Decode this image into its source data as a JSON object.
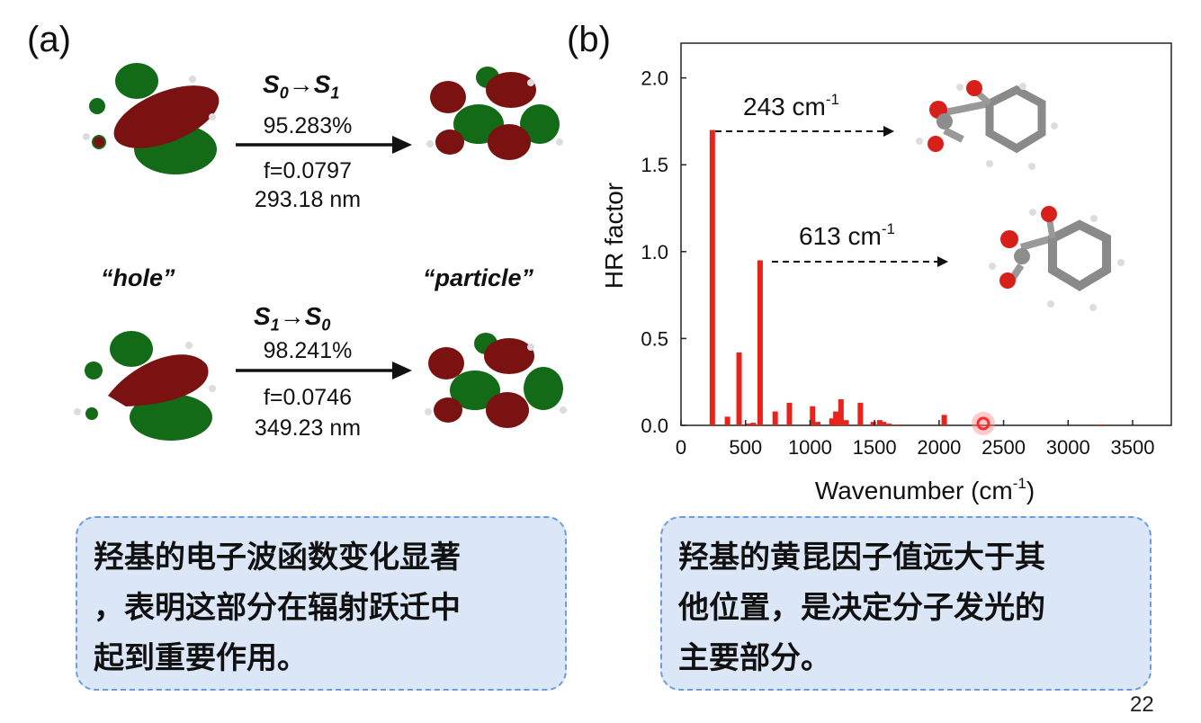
{
  "panel_a": {
    "label": "(a)",
    "transition1": {
      "from": "S",
      "from_sub": "0",
      "to": "S",
      "to_sub": "1",
      "percent": "95.283%",
      "f": "f=0.0797",
      "wavelength": "293.18 nm"
    },
    "transition2": {
      "from": "S",
      "from_sub": "1",
      "to": "S",
      "to_sub": "0",
      "percent": "98.241%",
      "f": "f=0.0746",
      "wavelength": "349.23 nm"
    },
    "hole_label": "“hole”",
    "particle_label": "“particle”"
  },
  "panel_b": {
    "label": "(b)",
    "annotation1": {
      "text": "243 cm",
      "sup": "-1"
    },
    "annotation2": {
      "text": "613 cm",
      "sup": "-1"
    }
  },
  "chart_data": {
    "type": "bar",
    "xlabel": "Wavenumber (cm",
    "xlabel_sup": "-1",
    "xlabel_close": ")",
    "ylabel": "HR factor",
    "xlim": [
      0,
      3800
    ],
    "ylim": [
      0,
      2.2
    ],
    "xticks": [
      0,
      500,
      1000,
      1500,
      2000,
      2500,
      3000,
      3500
    ],
    "xtick_labels": [
      "0",
      "500",
      "1000",
      "1500",
      "2000",
      "2500",
      "3000",
      "3500"
    ],
    "yticks": [
      0,
      0.5,
      1.0,
      1.5,
      2.0
    ],
    "ytick_labels": [
      "0.0",
      "0.5",
      "1.0",
      "1.5",
      "2.0"
    ],
    "bar_color": "#e8231c",
    "x": [
      243,
      360,
      450,
      520,
      560,
      613,
      730,
      840,
      1020,
      1060,
      1170,
      1200,
      1240,
      1280,
      1390,
      1490,
      1540,
      1570,
      1610,
      1680,
      2040,
      2300,
      3250
    ],
    "values": [
      1.7,
      0.05,
      0.42,
      0.01,
      0.015,
      0.95,
      0.08,
      0.13,
      0.11,
      0.02,
      0.04,
      0.08,
      0.15,
      0.03,
      0.13,
      0.02,
      0.03,
      0.02,
      0.01,
      0.005,
      0.06,
      0.0,
      0.005
    ]
  },
  "notes": {
    "left": [
      "羟基的电子波函数变化显著",
      "，表明这部分在辐射跃迁中",
      "起到重要作用。"
    ],
    "right": [
      "羟基的黄昆因子值远大于其",
      "他位置，是决定分子发光的",
      "主要部分。"
    ]
  },
  "page_number": "22",
  "colors": {
    "orbital_red": "#7a1212",
    "orbital_green": "#136b17",
    "note_bg": "#dbe7f6",
    "note_border": "#6d9de0"
  }
}
